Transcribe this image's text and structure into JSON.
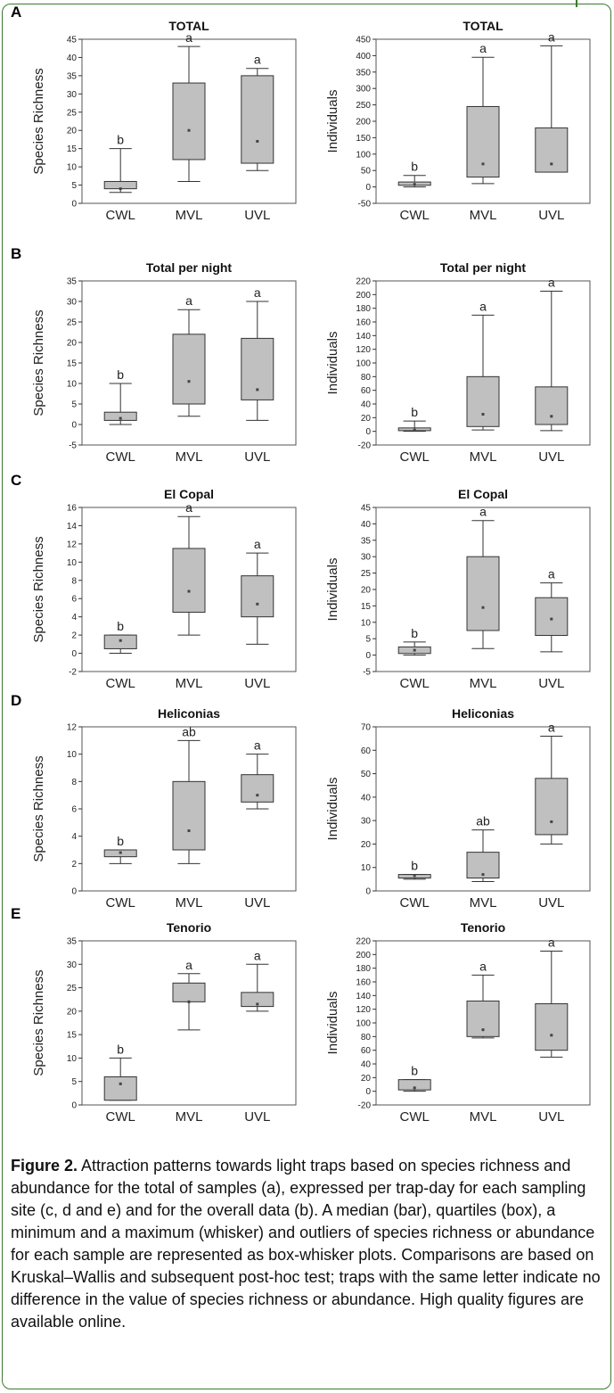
{
  "panels": [
    {
      "letter": "A"
    },
    {
      "letter": "B"
    },
    {
      "letter": "C"
    },
    {
      "letter": "D"
    },
    {
      "letter": "E"
    }
  ],
  "caption": {
    "label": "Figure 2.",
    "text": "Attraction patterns towards light traps based on species richness and abundance for the total of samples (a), expressed per trap-day for each sampling site (c, d and e) and for the overall data (b). A median (bar), quartiles (box), a minimum and a maximum (whisker) and outliers of species richness or abundance for each sample are represented as box-whisker plots. Comparisons are based on Kruskal–Wallis and subsequent post-hoc test; traps with the same letter indicate no difference in the value of species richness or abundance. High quality figures are available online."
  },
  "chart_data": [
    {
      "type": "box",
      "title": "TOTAL",
      "ylabel": "Species Richness",
      "ylim": [
        0,
        45
      ],
      "yticks": [
        0,
        5,
        10,
        15,
        20,
        25,
        30,
        35,
        40,
        45
      ],
      "categories": [
        "CWL",
        "MVL",
        "UVL"
      ],
      "boxes": [
        {
          "min": 3,
          "q1": 4,
          "q3": 6,
          "max": 15,
          "mean": 4,
          "letter": "b"
        },
        {
          "min": 6,
          "q1": 12,
          "q3": 33,
          "max": 43,
          "mean": 20,
          "letter": "a"
        },
        {
          "min": 9,
          "q1": 11,
          "q3": 35,
          "max": 37,
          "mean": 17,
          "letter": "a"
        }
      ]
    },
    {
      "type": "box",
      "title": "TOTAL",
      "ylabel": "Individuals",
      "ylim": [
        -50,
        450
      ],
      "yticks": [
        -50,
        0,
        50,
        100,
        150,
        200,
        250,
        300,
        350,
        400,
        450
      ],
      "categories": [
        "CWL",
        "MVL",
        "UVL"
      ],
      "boxes": [
        {
          "min": 0,
          "q1": 5,
          "q3": 15,
          "max": 35,
          "mean": 8,
          "letter": "b"
        },
        {
          "min": 10,
          "q1": 30,
          "q3": 245,
          "max": 395,
          "mean": 70,
          "letter": "a"
        },
        {
          "min": 45,
          "q1": 45,
          "q3": 180,
          "max": 430,
          "mean": 70,
          "letter": "a"
        }
      ]
    },
    {
      "type": "box",
      "title": "Total per night",
      "ylabel": "Species Richness",
      "ylim": [
        -5,
        35
      ],
      "yticks": [
        -5,
        0,
        5,
        10,
        15,
        20,
        25,
        30,
        35
      ],
      "categories": [
        "CWL",
        "MVL",
        "UVL"
      ],
      "boxes": [
        {
          "min": 0,
          "q1": 1,
          "q3": 3,
          "max": 10,
          "mean": 1.5,
          "letter": "b"
        },
        {
          "min": 2,
          "q1": 5,
          "q3": 22,
          "max": 28,
          "mean": 10.5,
          "letter": "a"
        },
        {
          "min": 1,
          "q1": 6,
          "q3": 21,
          "max": 30,
          "mean": 8.5,
          "letter": "a"
        }
      ]
    },
    {
      "type": "box",
      "title": "Total per night",
      "ylabel": "Individuals",
      "ylim": [
        -20,
        220
      ],
      "yticks": [
        -20,
        0,
        20,
        40,
        60,
        80,
        100,
        120,
        140,
        160,
        180,
        200,
        220
      ],
      "categories": [
        "CWL",
        "MVL",
        "UVL"
      ],
      "boxes": [
        {
          "min": 0,
          "q1": 1,
          "q3": 5,
          "max": 15,
          "mean": 2,
          "letter": "b"
        },
        {
          "min": 2,
          "q1": 7,
          "q3": 80,
          "max": 170,
          "mean": 25,
          "letter": "a"
        },
        {
          "min": 1,
          "q1": 10,
          "q3": 65,
          "max": 205,
          "mean": 22,
          "letter": "a"
        }
      ]
    },
    {
      "type": "box",
      "title": "El Copal",
      "ylabel": "Species Richness",
      "ylim": [
        -2,
        16
      ],
      "yticks": [
        -2,
        0,
        2,
        4,
        6,
        8,
        10,
        12,
        14,
        16
      ],
      "categories": [
        "CWL",
        "MVL",
        "UVL"
      ],
      "boxes": [
        {
          "min": 0,
          "q1": 0.5,
          "q3": 2,
          "max": 2,
          "mean": 1.4,
          "letter": "b"
        },
        {
          "min": 2,
          "q1": 4.5,
          "q3": 11.5,
          "max": 15,
          "mean": 6.8,
          "letter": "a"
        },
        {
          "min": 1,
          "q1": 4,
          "q3": 8.5,
          "max": 11,
          "mean": 5.4,
          "letter": "a"
        }
      ]
    },
    {
      "type": "box",
      "title": "El Copal",
      "ylabel": "Individuals",
      "ylim": [
        -5,
        45
      ],
      "yticks": [
        -5,
        0,
        5,
        10,
        15,
        20,
        25,
        30,
        35,
        40,
        45
      ],
      "categories": [
        "CWL",
        "MVL",
        "UVL"
      ],
      "boxes": [
        {
          "min": 0,
          "q1": 0.5,
          "q3": 2.5,
          "max": 4,
          "mean": 1.5,
          "letter": "b"
        },
        {
          "min": 2,
          "q1": 7.5,
          "q3": 30,
          "max": 41,
          "mean": 14.5,
          "letter": "a"
        },
        {
          "min": 1,
          "q1": 6,
          "q3": 17.5,
          "max": 22,
          "mean": 11,
          "letter": "a"
        }
      ]
    },
    {
      "type": "box",
      "title": "Heliconias",
      "ylabel": "Species Richness",
      "ylim": [
        0,
        12
      ],
      "yticks": [
        0,
        2,
        4,
        6,
        8,
        10,
        12
      ],
      "categories": [
        "CWL",
        "MVL",
        "UVL"
      ],
      "boxes": [
        {
          "min": 2,
          "q1": 2.5,
          "q3": 3,
          "max": 3,
          "mean": 2.8,
          "letter": "b"
        },
        {
          "min": 2,
          "q1": 3,
          "q3": 8,
          "max": 11,
          "mean": 4.4,
          "letter": "ab"
        },
        {
          "min": 6,
          "q1": 6.5,
          "q3": 8.5,
          "max": 10,
          "mean": 7,
          "letter": "a"
        }
      ]
    },
    {
      "type": "box",
      "title": "Heliconias",
      "ylabel": "Individuals",
      "ylim": [
        0,
        70
      ],
      "yticks": [
        0,
        10,
        20,
        30,
        40,
        50,
        60,
        70
      ],
      "categories": [
        "CWL",
        "MVL",
        "UVL"
      ],
      "boxes": [
        {
          "min": 5,
          "q1": 5.5,
          "q3": 7,
          "max": 7,
          "mean": 6.5,
          "letter": "b"
        },
        {
          "min": 4,
          "q1": 5.5,
          "q3": 16.5,
          "max": 26,
          "mean": 7,
          "letter": "ab"
        },
        {
          "min": 20,
          "q1": 24,
          "q3": 48,
          "max": 66,
          "mean": 29.5,
          "letter": "a"
        }
      ]
    },
    {
      "type": "box",
      "title": "Tenorio",
      "ylabel": "Species Richness",
      "ylim": [
        0,
        35
      ],
      "yticks": [
        0,
        5,
        10,
        15,
        20,
        25,
        30,
        35
      ],
      "categories": [
        "CWL",
        "MVL",
        "UVL"
      ],
      "boxes": [
        {
          "min": 1,
          "q1": 1,
          "q3": 6,
          "max": 10,
          "mean": 4.5,
          "letter": "b"
        },
        {
          "min": 16,
          "q1": 22,
          "q3": 26,
          "max": 28,
          "mean": 22,
          "letter": "a"
        },
        {
          "min": 20,
          "q1": 21,
          "q3": 24,
          "max": 30,
          "mean": 21.5,
          "letter": "a"
        }
      ]
    },
    {
      "type": "box",
      "title": "Tenorio",
      "ylabel": "Individuals",
      "ylim": [
        -20,
        220
      ],
      "yticks": [
        -20,
        0,
        20,
        40,
        60,
        80,
        100,
        120,
        140,
        160,
        180,
        200,
        220
      ],
      "categories": [
        "CWL",
        "MVL",
        "UVL"
      ],
      "boxes": [
        {
          "min": 0,
          "q1": 2,
          "q3": 17,
          "max": 17,
          "mean": 5,
          "letter": "b"
        },
        {
          "min": 78,
          "q1": 80,
          "q3": 132,
          "max": 170,
          "mean": 90,
          "letter": "a"
        },
        {
          "min": 50,
          "q1": 60,
          "q3": 128,
          "max": 205,
          "mean": 82,
          "letter": "a"
        }
      ]
    }
  ]
}
